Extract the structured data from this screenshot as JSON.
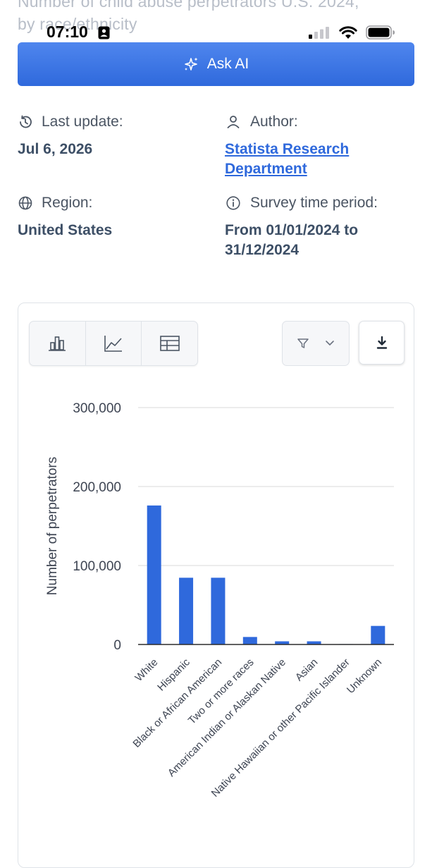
{
  "header": {
    "ghost_title_line1": "Number of child abuse perpetrators U.S. 2024,",
    "ghost_title_line2": "by race/ethnicity"
  },
  "status_bar": {
    "time": "07:10"
  },
  "ask_ai": {
    "label": "Ask AI"
  },
  "meta": {
    "last_update_label": "Last update:",
    "last_update_value": "Jul 6, 2026",
    "author_label": "Author:",
    "author_value": "Statista Research Department",
    "region_label": "Region:",
    "region_value": "United States",
    "survey_label": "Survey time period:",
    "survey_value": "From 01/01/2024 to 31/12/2024"
  },
  "colors": {
    "accent": "#2f69dc",
    "bar": "#2f69dc",
    "grid": "#d9d9d9"
  },
  "icons": {
    "last_update": "history-icon",
    "author": "user-icon",
    "region": "globe-icon",
    "survey": "info-icon",
    "view_bar": "bar-chart-icon",
    "view_line": "line-chart-icon",
    "view_table": "table-icon",
    "filter": "filter-icon",
    "download": "download-icon"
  },
  "chart_data": {
    "type": "bar",
    "categories": [
      "White",
      "Hispanic",
      "Black or African American",
      "Two or more races",
      "American Indian or Alaskan Native",
      "Asian",
      "Native Hawaiian or other Pacific Islander",
      "Unknown"
    ],
    "values": [
      176000,
      84500,
      84500,
      9500,
      4000,
      4000,
      500,
      23500
    ],
    "ylabel": "Number of perpetrators",
    "xlabel": "",
    "ylim": [
      0,
      300000
    ],
    "yticks": [
      "300,000",
      "200,000",
      "100,000",
      "0"
    ],
    "ytick_values": [
      300000,
      200000,
      100000,
      0
    ],
    "grid": true
  }
}
